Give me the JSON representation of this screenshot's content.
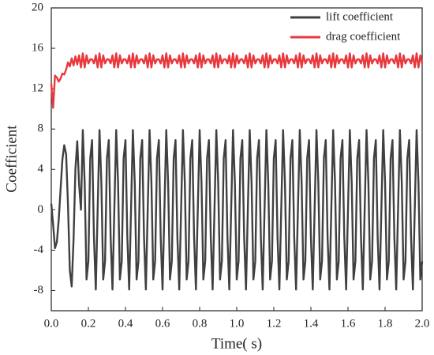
{
  "chart_data": {
    "type": "line",
    "xlabel": "Time( s)",
    "ylabel": "Coefficient",
    "xlim": [
      0,
      2
    ],
    "ylim": [
      -10,
      20
    ],
    "xticks": [
      {
        "value": 0,
        "label": "0.0"
      },
      {
        "value": 0.2,
        "label": "0.2"
      },
      {
        "value": 0.4,
        "label": "0.4"
      },
      {
        "value": 0.6,
        "label": "0.6"
      },
      {
        "value": 0.8,
        "label": "0.8"
      },
      {
        "value": 1,
        "label": "1.0"
      },
      {
        "value": 1.2,
        "label": "1.2"
      },
      {
        "value": 1.4,
        "label": "1.4"
      },
      {
        "value": 1.6,
        "label": "1.6"
      },
      {
        "value": 1.8,
        "label": "1.8"
      },
      {
        "value": 2,
        "label": "2.0"
      }
    ],
    "yticks": [
      -8,
      -4,
      0,
      4,
      8,
      12,
      16,
      20
    ],
    "legend": "upper right",
    "x": [
      0,
      0.01,
      0.02,
      0.03,
      0.04,
      0.05,
      0.06,
      0.07,
      0.08,
      0.09,
      0.1,
      0.11,
      0.12,
      0.13,
      0.14,
      0.15,
      0.16,
      0.17,
      0.18,
      0.19,
      0.2,
      0.21,
      0.22,
      0.23,
      0.24,
      0.25,
      0.26,
      0.27,
      0.28,
      0.29,
      0.3,
      0.31,
      0.32,
      0.33,
      0.34,
      0.35,
      0.36,
      0.37,
      0.38,
      0.39,
      0.4,
      0.41,
      0.42,
      0.43,
      0.44,
      0.45,
      0.46,
      0.47,
      0.48,
      0.49,
      0.5,
      0.51,
      0.52,
      0.53,
      0.54,
      0.55,
      0.56,
      0.57,
      0.58,
      0.59,
      0.6,
      0.61,
      0.62,
      0.63,
      0.64,
      0.65,
      0.66,
      0.67,
      0.68,
      0.69,
      0.7,
      0.71,
      0.72,
      0.73,
      0.74,
      0.75,
      0.76,
      0.77,
      0.78,
      0.79,
      0.8,
      0.81,
      0.82,
      0.83,
      0.84,
      0.85,
      0.86,
      0.87,
      0.88,
      0.89,
      0.9,
      0.91,
      0.92,
      0.93,
      0.94,
      0.95,
      0.96,
      0.97,
      0.98,
      0.99,
      1,
      1.01,
      1.02,
      1.03,
      1.04,
      1.05,
      1.06,
      1.07,
      1.08,
      1.09,
      1.1,
      1.11,
      1.12,
      1.13,
      1.14,
      1.15,
      1.16,
      1.17,
      1.18,
      1.19,
      1.2,
      1.21,
      1.22,
      1.23,
      1.24,
      1.25,
      1.26,
      1.27,
      1.28,
      1.29,
      1.3,
      1.31,
      1.32,
      1.33,
      1.34,
      1.35,
      1.36,
      1.37,
      1.38,
      1.39,
      1.4,
      1.41,
      1.42,
      1.43,
      1.44,
      1.45,
      1.46,
      1.47,
      1.48,
      1.49,
      1.5,
      1.51,
      1.52,
      1.53,
      1.54,
      1.55,
      1.56,
      1.57,
      1.58,
      1.59,
      1.6,
      1.61,
      1.62,
      1.63,
      1.64,
      1.65,
      1.66,
      1.67,
      1.68,
      1.69,
      1.7,
      1.71,
      1.72,
      1.73,
      1.74,
      1.75,
      1.76,
      1.77,
      1.78,
      1.79,
      1.8,
      1.81,
      1.82,
      1.83,
      1.84,
      1.85,
      1.86,
      1.87,
      1.88,
      1.89,
      1.9,
      1.91,
      1.92,
      1.93,
      1.94,
      1.95,
      1.96,
      1.97,
      1.98,
      1.99,
      2
    ],
    "series": [
      {
        "name": "lift coefficient",
        "color": "#404040",
        "values": [
          0.6,
          -1.5,
          -3.8,
          -3.2,
          -1.0,
          2.0,
          5.0,
          6.4,
          5.5,
          0.5,
          -6.0,
          -7.6,
          -3.0,
          4.0,
          6.8,
          2.5,
          0,
          7.9,
          2.7,
          -6.9,
          -5.1,
          5.1,
          6.9,
          -2.7,
          -7.9,
          0,
          7.9,
          2.7,
          -6.9,
          -5.1,
          5.1,
          6.9,
          -2.7,
          -7.9,
          0,
          7.9,
          2.7,
          -6.9,
          -5.1,
          5.1,
          6.9,
          -2.7,
          -7.9,
          0,
          7.9,
          2.7,
          -6.9,
          -5.1,
          5.1,
          6.9,
          -2.7,
          -7.9,
          0,
          7.9,
          2.7,
          -6.9,
          -5.1,
          5.1,
          6.9,
          -2.7,
          -7.9,
          0,
          7.9,
          2.7,
          -6.9,
          -5.1,
          5.1,
          6.9,
          -2.7,
          -7.9,
          0,
          7.9,
          2.7,
          -6.9,
          -5.1,
          5.1,
          6.9,
          -2.7,
          -7.9,
          0,
          7.9,
          2.7,
          -6.9,
          -5.1,
          5.1,
          6.9,
          -2.7,
          -7.9,
          0,
          7.9,
          2.7,
          -6.9,
          -5.1,
          5.1,
          6.9,
          -2.7,
          -7.9,
          0,
          7.9,
          2.7,
          -6.9,
          -5.1,
          5.1,
          6.9,
          -2.7,
          -7.9,
          0,
          7.9,
          2.7,
          -6.9,
          -5.1,
          5.1,
          6.9,
          -2.7,
          -7.9,
          0,
          7.9,
          2.7,
          -6.9,
          -5.1,
          5.1,
          6.9,
          -2.7,
          -7.9,
          0,
          7.9,
          2.7,
          -6.9,
          -5.1,
          5.1,
          6.9,
          -2.7,
          -7.9,
          0,
          7.9,
          2.7,
          -6.9,
          -5.1,
          5.1,
          6.9,
          -2.7,
          -7.9,
          0,
          7.9,
          2.7,
          -6.9,
          -5.1,
          5.1,
          6.9,
          -2.7,
          -7.9,
          0,
          7.9,
          2.7,
          -6.9,
          -5.1,
          5.1,
          6.9,
          -2.7,
          -7.9,
          0,
          7.9,
          2.7,
          -6.9,
          -5.1,
          5.1,
          6.9,
          -2.7,
          -7.9,
          0,
          7.9,
          2.7,
          -6.9,
          -5.1,
          5.1,
          6.9,
          -2.7,
          -7.9,
          0,
          7.9,
          2.7,
          -6.9,
          -5.1,
          5.1,
          6.9,
          -2.7,
          -7.9,
          0,
          7.9,
          2.7,
          -6.9,
          -5.1,
          5.1,
          6.9,
          -2.7,
          -7.9,
          0,
          7.9,
          2.7,
          -6.9,
          -5.1
        ]
      },
      {
        "name": "drag coefficient",
        "color": "#e8383d",
        "values": [
          12.5,
          10.1,
          13.3,
          13.1,
          12.7,
          13.0,
          13.5,
          13.4,
          13.9,
          14.6,
          14.2,
          15.0,
          14.3,
          15.2,
          14.4,
          15.3,
          14.1,
          15.5,
          14.1,
          15.3,
          14.5,
          14.9,
          14.9,
          14.5,
          15.3,
          14.1,
          15.5,
          14.1,
          15.3,
          14.5,
          14.9,
          14.9,
          14.5,
          15.3,
          14.1,
          15.5,
          14.1,
          15.3,
          14.5,
          14.9,
          14.9,
          14.5,
          15.3,
          14.1,
          15.5,
          14.1,
          15.3,
          14.5,
          14.9,
          14.9,
          14.5,
          15.3,
          14.1,
          15.5,
          14.1,
          15.3,
          14.5,
          14.9,
          14.9,
          14.5,
          15.3,
          14.1,
          15.5,
          14.1,
          15.3,
          14.5,
          14.9,
          14.9,
          14.5,
          15.3,
          14.1,
          15.5,
          14.1,
          15.3,
          14.5,
          14.9,
          14.9,
          14.5,
          15.3,
          14.1,
          15.5,
          14.1,
          15.3,
          14.5,
          14.9,
          14.9,
          14.5,
          15.3,
          14.1,
          15.5,
          14.1,
          15.3,
          14.5,
          14.9,
          14.9,
          14.5,
          15.3,
          14.1,
          15.5,
          14.1,
          15.3,
          14.5,
          14.9,
          14.9,
          14.5,
          15.3,
          14.1,
          15.5,
          14.1,
          15.3,
          14.5,
          14.9,
          14.9,
          14.5,
          15.3,
          14.1,
          15.5,
          14.1,
          15.3,
          14.5,
          14.9,
          14.9,
          14.5,
          15.3,
          14.1,
          15.5,
          14.1,
          15.3,
          14.5,
          14.9,
          14.9,
          14.5,
          15.3,
          14.1,
          15.5,
          14.1,
          15.3,
          14.5,
          14.9,
          14.9,
          14.5,
          15.3,
          14.1,
          15.5,
          14.1,
          15.3,
          14.5,
          14.9,
          14.9,
          14.5,
          15.3,
          14.1,
          15.5,
          14.1,
          15.3,
          14.5,
          14.9,
          14.9,
          14.5,
          15.3,
          14.1,
          15.5,
          14.1,
          15.3,
          14.5,
          14.9,
          14.9,
          14.5,
          15.3,
          14.1,
          15.5,
          14.1,
          15.3,
          14.5,
          14.9,
          14.9,
          14.5,
          15.3,
          14.1,
          15.5,
          14.1,
          15.3,
          14.5,
          14.9,
          14.9,
          14.5,
          15.3,
          14.1,
          15.5,
          14.1,
          15.3,
          14.5,
          14.9,
          14.9,
          14.5,
          15.3,
          14.1,
          15.5,
          14.1,
          15.3,
          14.5
        ]
      }
    ]
  }
}
